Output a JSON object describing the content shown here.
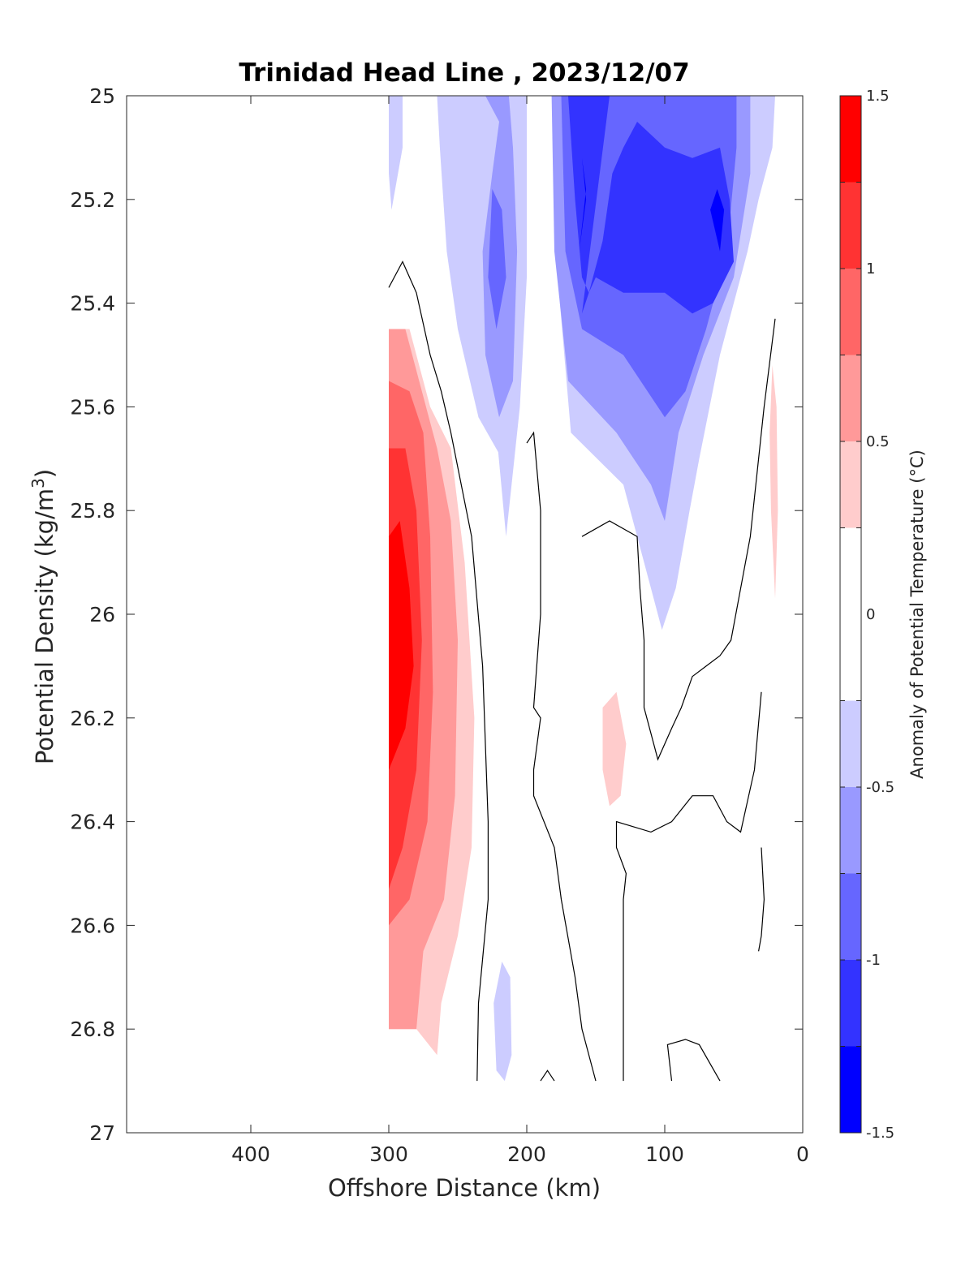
{
  "chart_data": {
    "type": "contour",
    "title": "Trinidad Head Line , 2023/12/07",
    "xlabel": "Offshore Distance (km)",
    "ylabel": "Potential Density (kg/m",
    "ylabel_sup": "3",
    "ylabel_close": ")",
    "xlim": [
      490,
      0
    ],
    "ylim": [
      25,
      27
    ],
    "x_reversed": true,
    "y_reversed": true,
    "xticks": [
      400,
      300,
      200,
      100,
      0
    ],
    "xtick_labels": [
      "400",
      "300",
      "200",
      "100",
      "0"
    ],
    "yticks": [
      25,
      25.2,
      25.4,
      25.6,
      25.8,
      26,
      26.2,
      26.4,
      26.6,
      26.8,
      27
    ],
    "ytick_labels": [
      "25",
      "25.2",
      "25.4",
      "25.6",
      "25.8",
      "26",
      "26.2",
      "26.4",
      "26.6",
      "26.8",
      "27"
    ],
    "colorbar": {
      "label": "Anomaly of Potential Temperature (°C)",
      "min": -1.5,
      "max": 1.5,
      "levels": [
        -1.5,
        -1.25,
        -1.0,
        -0.75,
        -0.5,
        -0.25,
        0.25,
        0.5,
        0.75,
        1.0,
        1.25,
        1.5
      ],
      "colors": [
        "#0000ff",
        "#3333ff",
        "#6666ff",
        "#9999ff",
        "#ccccff",
        "#ffffff",
        "#ffcccc",
        "#ff9999",
        "#ff6666",
        "#ff3333",
        "#ff0000"
      ],
      "ticks": [
        -1.5,
        -1,
        -0.5,
        0,
        0.5,
        1,
        1.5
      ],
      "tick_labels": [
        "-1.5",
        "-1",
        "-0.5",
        "0",
        "0.5",
        "1",
        "1.5"
      ]
    },
    "filled_regions": [
      {
        "level": 0.25,
        "color": "#ffcccc",
        "points": [
          [
            300,
            25.45
          ],
          [
            285,
            25.45
          ],
          [
            270,
            25.6
          ],
          [
            255,
            25.68
          ],
          [
            245,
            25.9
          ],
          [
            238,
            26.2
          ],
          [
            240,
            26.45
          ],
          [
            250,
            26.62
          ],
          [
            262,
            26.75
          ],
          [
            265,
            26.85
          ],
          [
            280,
            26.8
          ],
          [
            300,
            26.8
          ]
        ]
      },
      {
        "level": 0.5,
        "color": "#ff9999",
        "points": [
          [
            300,
            25.45
          ],
          [
            288,
            25.45
          ],
          [
            278,
            25.55
          ],
          [
            265,
            25.68
          ],
          [
            255,
            25.82
          ],
          [
            250,
            26.05
          ],
          [
            252,
            26.35
          ],
          [
            260,
            26.55
          ],
          [
            275,
            26.65
          ],
          [
            280,
            26.8
          ],
          [
            300,
            26.8
          ]
        ]
      },
      {
        "level": 0.75,
        "color": "#ff6666",
        "points": [
          [
            300,
            25.55
          ],
          [
            285,
            25.57
          ],
          [
            275,
            25.65
          ],
          [
            270,
            25.85
          ],
          [
            268,
            26.15
          ],
          [
            272,
            26.4
          ],
          [
            285,
            26.55
          ],
          [
            300,
            26.6
          ]
        ]
      },
      {
        "level": 1.0,
        "color": "#ff3333",
        "points": [
          [
            300,
            25.68
          ],
          [
            288,
            25.68
          ],
          [
            280,
            25.8
          ],
          [
            276,
            26.05
          ],
          [
            280,
            26.3
          ],
          [
            290,
            26.45
          ],
          [
            300,
            26.53
          ]
        ]
      },
      {
        "level": 1.25,
        "color": "#ff0000",
        "points": [
          [
            300,
            25.85
          ],
          [
            292,
            25.82
          ],
          [
            285,
            25.95
          ],
          [
            282,
            26.1
          ],
          [
            288,
            26.22
          ],
          [
            300,
            26.3
          ]
        ]
      },
      {
        "level": 0.25,
        "color": "#ffcccc",
        "points": [
          [
            145,
            26.18
          ],
          [
            135,
            26.15
          ],
          [
            128,
            26.25
          ],
          [
            132,
            26.35
          ],
          [
            140,
            26.37
          ],
          [
            145,
            26.3
          ]
        ]
      },
      {
        "level": 0.25,
        "color": "#ffcccc",
        "points": [
          [
            22,
            25.52
          ],
          [
            19,
            25.6
          ],
          [
            18,
            25.8
          ],
          [
            20,
            25.97
          ],
          [
            23,
            25.8
          ],
          [
            24,
            25.65
          ]
        ]
      },
      {
        "level": -0.25,
        "color": "#ccccff",
        "points": [
          [
            300,
            25.0
          ],
          [
            290,
            25.0
          ],
          [
            290,
            25.1
          ],
          [
            298,
            25.22
          ],
          [
            300,
            25.15
          ]
        ]
      },
      {
        "level": -0.25,
        "color": "#ccccff",
        "points": [
          [
            265,
            25.0
          ],
          [
            245,
            25.0
          ],
          [
            242,
            25.15
          ],
          [
            240,
            25.25
          ],
          [
            232,
            25.45
          ],
          [
            222,
            25.65
          ],
          [
            215,
            25.85
          ],
          [
            205,
            25.6
          ],
          [
            200,
            25.35
          ],
          [
            200,
            25.0
          ],
          [
            178,
            25.0
          ],
          [
            176,
            25.4
          ],
          [
            168,
            25.65
          ],
          [
            130,
            25.75
          ],
          [
            110,
            25.95
          ],
          [
            102,
            26.03
          ],
          [
            92,
            25.95
          ],
          [
            82,
            25.8
          ],
          [
            75,
            25.7
          ],
          [
            60,
            25.5
          ],
          [
            40,
            25.3
          ],
          [
            32,
            25.2
          ],
          [
            22,
            25.1
          ],
          [
            20,
            25.0
          ],
          [
            215,
            25.0
          ],
          [
            225,
            25.0
          ],
          [
            230,
            25.0
          ]
        ]
      },
      {
        "level": -0.25,
        "color": "#ccccff",
        "points": [
          [
            265,
            25.0
          ],
          [
            263,
            25.1
          ],
          [
            258,
            25.3
          ],
          [
            250,
            25.45
          ],
          [
            235,
            25.62
          ],
          [
            218,
            25.7
          ],
          [
            215,
            25.55
          ],
          [
            210,
            25.3
          ],
          [
            215,
            25.15
          ],
          [
            222,
            25.0
          ]
        ]
      },
      {
        "level": -0.5,
        "color": "#9999ff",
        "points": [
          [
            230,
            25.0
          ],
          [
            220,
            25.05
          ],
          [
            225,
            25.15
          ],
          [
            232,
            25.3
          ],
          [
            230,
            25.5
          ],
          [
            220,
            25.62
          ],
          [
            210,
            25.55
          ],
          [
            207,
            25.3
          ],
          [
            210,
            25.1
          ],
          [
            213,
            25.0
          ]
        ]
      },
      {
        "level": -0.5,
        "color": "#9999ff",
        "points": [
          [
            182,
            25.0
          ],
          [
            180,
            25.3
          ],
          [
            170,
            25.55
          ],
          [
            135,
            25.65
          ],
          [
            110,
            25.75
          ],
          [
            100,
            25.82
          ],
          [
            90,
            25.65
          ],
          [
            72,
            25.5
          ],
          [
            50,
            25.35
          ],
          [
            38,
            25.15
          ],
          [
            38,
            25.0
          ]
        ]
      },
      {
        "level": -0.75,
        "color": "#6666ff",
        "points": [
          [
            225,
            25.18
          ],
          [
            218,
            25.22
          ],
          [
            215,
            25.35
          ],
          [
            222,
            25.45
          ],
          [
            228,
            25.35
          ]
        ]
      },
      {
        "level": -0.75,
        "color": "#6666ff",
        "points": [
          [
            175,
            25.0
          ],
          [
            172,
            25.3
          ],
          [
            160,
            25.45
          ],
          [
            130,
            25.5
          ],
          [
            100,
            25.62
          ],
          [
            85,
            25.57
          ],
          [
            70,
            25.45
          ],
          [
            55,
            25.3
          ],
          [
            48,
            25.1
          ],
          [
            48,
            25.0
          ]
        ]
      },
      {
        "level": -1.0,
        "color": "#3333ff",
        "points": [
          [
            170,
            25.0
          ],
          [
            165,
            25.2
          ],
          [
            160,
            25.35
          ],
          [
            155,
            25.38
          ],
          [
            145,
            25.28
          ],
          [
            138,
            25.15
          ],
          [
            130,
            25.1
          ],
          [
            120,
            25.05
          ],
          [
            100,
            25.1
          ],
          [
            80,
            25.12
          ],
          [
            60,
            25.1
          ],
          [
            53,
            25.2
          ],
          [
            50,
            25.32
          ],
          [
            65,
            25.4
          ],
          [
            80,
            25.42
          ],
          [
            100,
            25.38
          ],
          [
            130,
            25.38
          ],
          [
            150,
            25.35
          ],
          [
            155,
            25.38
          ],
          [
            160,
            25.42
          ],
          [
            140,
            25.0
          ]
        ]
      },
      {
        "level": -1.25,
        "color": "#0000ff",
        "points": [
          [
            160,
            25.12
          ],
          [
            157,
            25.2
          ],
          [
            162,
            25.3
          ],
          [
            157,
            25.18
          ]
        ]
      },
      {
        "level": -1.25,
        "color": "#0000ff",
        "points": [
          [
            62,
            25.18
          ],
          [
            57,
            25.22
          ],
          [
            60,
            25.3
          ],
          [
            67,
            25.22
          ]
        ]
      },
      {
        "level": -0.25,
        "color": "#ccccff",
        "points": [
          [
            218,
            26.67
          ],
          [
            212,
            26.7
          ],
          [
            211,
            26.85
          ],
          [
            216,
            26.9
          ],
          [
            222,
            26.88
          ],
          [
            224,
            26.75
          ]
        ]
      }
    ],
    "zero_contours": [
      {
        "points": [
          [
            300,
            25.37
          ],
          [
            290,
            25.32
          ],
          [
            280,
            25.38
          ],
          [
            270,
            25.5
          ],
          [
            262,
            25.57
          ],
          [
            255,
            25.65
          ],
          [
            240,
            25.85
          ],
          [
            232,
            26.1
          ],
          [
            228,
            26.4
          ],
          [
            228,
            26.55
          ],
          [
            235,
            26.75
          ],
          [
            236,
            26.9
          ]
        ]
      },
      {
        "points": [
          [
            200,
            25.67
          ],
          [
            195,
            25.65
          ],
          [
            190,
            25.8
          ],
          [
            190,
            26.0
          ],
          [
            195,
            26.18
          ],
          [
            190,
            26.2
          ],
          [
            195,
            26.3
          ],
          [
            195,
            26.35
          ],
          [
            180,
            26.45
          ],
          [
            175,
            26.55
          ],
          [
            165,
            26.7
          ],
          [
            160,
            26.8
          ],
          [
            150,
            26.9
          ]
        ]
      },
      {
        "points": [
          [
            160,
            25.85
          ],
          [
            140,
            25.82
          ],
          [
            120,
            25.85
          ],
          [
            118,
            25.95
          ],
          [
            115,
            26.05
          ],
          [
            115,
            26.18
          ],
          [
            105,
            26.28
          ],
          [
            95,
            26.22
          ],
          [
            88,
            26.18
          ],
          [
            80,
            26.12
          ],
          [
            70,
            26.1
          ],
          [
            60,
            26.08
          ],
          [
            52,
            26.05
          ],
          [
            38,
            25.85
          ],
          [
            28,
            25.6
          ],
          [
            20,
            25.43
          ]
        ]
      },
      {
        "points": [
          [
            130,
            26.9
          ],
          [
            130,
            26.7
          ],
          [
            130,
            26.55
          ],
          [
            128,
            26.5
          ],
          [
            135,
            26.45
          ],
          [
            135,
            26.4
          ],
          [
            110,
            26.42
          ],
          [
            95,
            26.4
          ],
          [
            80,
            26.35
          ],
          [
            65,
            26.35
          ],
          [
            55,
            26.4
          ],
          [
            45,
            26.42
          ],
          [
            35,
            26.3
          ],
          [
            30,
            26.15
          ]
        ]
      },
      {
        "points": [
          [
            30,
            26.45
          ],
          [
            28,
            26.55
          ],
          [
            30,
            26.62
          ],
          [
            32,
            26.65
          ]
        ]
      },
      {
        "points": [
          [
            95,
            26.9
          ],
          [
            98,
            26.83
          ],
          [
            85,
            26.82
          ],
          [
            75,
            26.83
          ],
          [
            60,
            26.9
          ]
        ]
      },
      {
        "points": [
          [
            190,
            26.9
          ],
          [
            185,
            26.88
          ],
          [
            180,
            26.9
          ]
        ]
      }
    ]
  }
}
